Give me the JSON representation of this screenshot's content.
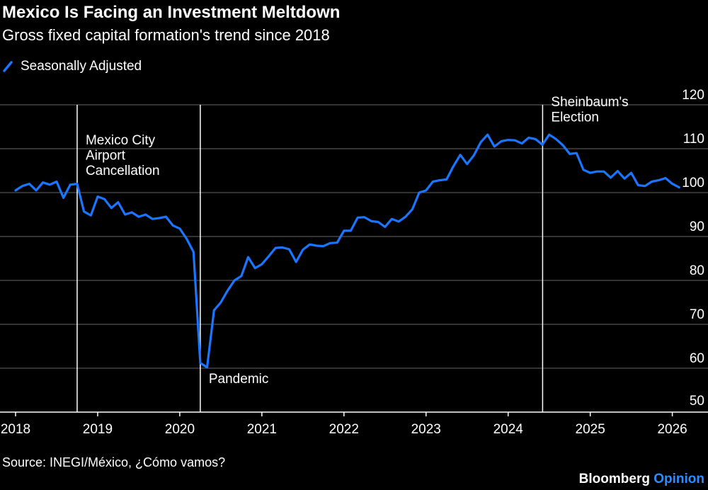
{
  "header": {
    "title": "Mexico Is Facing an Investment Meltdown",
    "subtitle": "Gross fixed capital formation's trend since 2018"
  },
  "footer": {
    "source": "Source: INEGI/México, ¿Cómo vamos?",
    "brand_main": "Bloomberg",
    "brand_accent": "Opinion"
  },
  "colors": {
    "background": "#000000",
    "series": "#1a75ff",
    "grid": "#666666",
    "brand_accent": "#2f8cff"
  },
  "chart_data": {
    "type": "line",
    "title": "Mexico Is Facing an Investment Meltdown",
    "subtitle": "Gross fixed capital formation's trend since 2018",
    "x_range": [
      2018.0,
      2026.15
    ],
    "ylim": [
      50,
      120
    ],
    "y_ticks": [
      50,
      60,
      70,
      80,
      90,
      100,
      110,
      120
    ],
    "x_ticks": [
      2018,
      2019,
      2020,
      2021,
      2022,
      2023,
      2024,
      2025,
      2026
    ],
    "x_tick_labels": [
      "2018",
      "2019",
      "2020",
      "2021",
      "2022",
      "2023",
      "2024",
      "2025",
      "2026"
    ],
    "grid": true,
    "y_axis_side": "right",
    "legend_placement": "top-left",
    "series": [
      {
        "name": "Seasonally Adjusted",
        "x": [
          2018.0,
          2018.083,
          2018.167,
          2018.25,
          2018.333,
          2018.417,
          2018.5,
          2018.583,
          2018.667,
          2018.75,
          2018.833,
          2018.917,
          2019.0,
          2019.083,
          2019.167,
          2019.25,
          2019.333,
          2019.417,
          2019.5,
          2019.583,
          2019.667,
          2019.75,
          2019.833,
          2019.917,
          2020.0,
          2020.083,
          2020.167,
          2020.25,
          2020.333,
          2020.417,
          2020.5,
          2020.583,
          2020.667,
          2020.75,
          2020.833,
          2020.917,
          2021.0,
          2021.083,
          2021.167,
          2021.25,
          2021.333,
          2021.417,
          2021.5,
          2021.583,
          2021.667,
          2021.75,
          2021.833,
          2021.917,
          2022.0,
          2022.083,
          2022.167,
          2022.25,
          2022.333,
          2022.417,
          2022.5,
          2022.583,
          2022.667,
          2022.75,
          2022.833,
          2022.917,
          2023.0,
          2023.083,
          2023.167,
          2023.25,
          2023.333,
          2023.417,
          2023.5,
          2023.583,
          2023.667,
          2023.75,
          2023.833,
          2023.917,
          2024.0,
          2024.083,
          2024.167,
          2024.25,
          2024.333,
          2024.417,
          2024.5,
          2024.583,
          2024.667,
          2024.75,
          2024.833,
          2024.917,
          2025.0,
          2025.083,
          2025.167,
          2025.25,
          2025.333,
          2025.417,
          2025.5,
          2025.583,
          2025.667,
          2025.75,
          2025.833,
          2025.917,
          2026.0,
          2026.083
        ],
        "values": [
          100.5,
          101.5,
          102.0,
          100.5,
          102.3,
          101.8,
          102.5,
          98.8,
          101.8,
          102.0,
          95.7,
          94.8,
          99.1,
          98.5,
          96.5,
          97.8,
          95.0,
          95.5,
          94.5,
          95.0,
          94.0,
          94.2,
          94.5,
          92.5,
          91.8,
          89.5,
          86.5,
          61.2,
          60.2,
          73.2,
          75.0,
          77.7,
          80.0,
          81.0,
          85.3,
          82.8,
          83.7,
          85.5,
          87.4,
          87.5,
          87.1,
          84.2,
          87.0,
          88.2,
          87.9,
          87.8,
          88.5,
          88.6,
          91.3,
          91.3,
          94.3,
          94.4,
          93.5,
          93.3,
          92.2,
          94.0,
          93.4,
          94.5,
          96.2,
          100.0,
          100.5,
          102.5,
          102.8,
          103.0,
          106.0,
          108.6,
          106.5,
          108.5,
          111.5,
          113.2,
          110.5,
          111.7,
          112.0,
          111.9,
          111.2,
          112.5,
          112.2,
          110.9,
          113.2,
          112.2,
          110.8,
          108.8,
          109.0,
          105.2,
          104.5,
          104.8,
          104.8,
          103.4,
          104.9,
          103.2,
          104.5,
          101.7,
          101.5,
          102.5,
          102.8,
          103.3,
          102.0,
          101.2
        ]
      }
    ],
    "annotations": [
      {
        "x": 2018.75,
        "label_lines": [
          "Mexico City",
          "Airport",
          "Cancellation"
        ]
      },
      {
        "x": 2020.25,
        "label_lines": [
          "Pandemic"
        ]
      },
      {
        "x": 2024.42,
        "label_lines": [
          "Sheinbaum's",
          "Election"
        ]
      }
    ]
  }
}
